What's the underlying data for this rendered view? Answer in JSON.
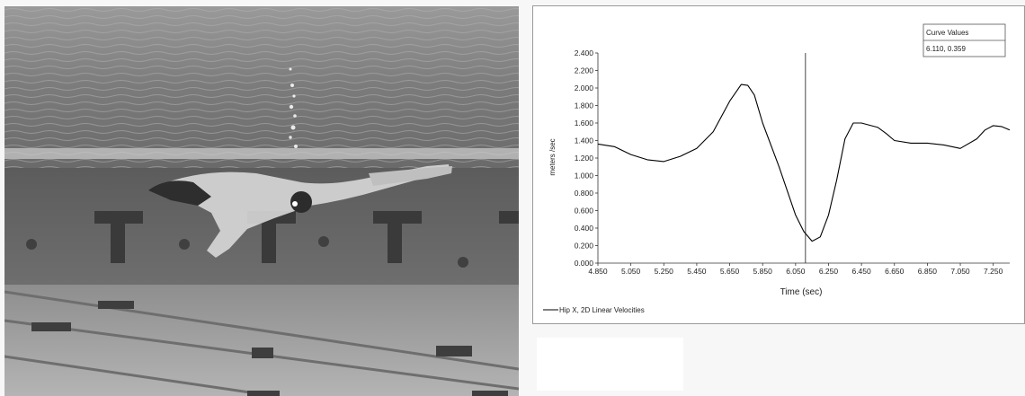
{
  "video_frame": {
    "description_icon": "swimmer-underwater-photo"
  },
  "chart_data": {
    "type": "line",
    "xlabel": "Time (sec)",
    "ylabel": "meters /sec",
    "xlim": [
      4.85,
      7.35
    ],
    "ylim": [
      0.0,
      2.4
    ],
    "x_ticks": [
      "4.850",
      "5.050",
      "5.250",
      "5.450",
      "5.650",
      "5.850",
      "6.050",
      "6.250",
      "6.450",
      "6.650",
      "6.850",
      "7.050",
      "7.250"
    ],
    "y_ticks": [
      "0.000",
      "0.200",
      "0.400",
      "0.600",
      "0.800",
      "1.000",
      "1.200",
      "1.400",
      "1.600",
      "1.800",
      "2.000",
      "2.200",
      "2.400"
    ],
    "cursor_x": 6.11,
    "legend": {
      "label": "Hip X, 2D Linear Velocities",
      "placement": "bottom-left"
    },
    "curve_values": {
      "title": "Curve Values",
      "value": "6.110,  0.359"
    },
    "series": [
      {
        "name": "Hip X, 2D Linear Velocities",
        "color": "#000000",
        "x": [
          4.85,
          4.95,
          5.05,
          5.15,
          5.25,
          5.35,
          5.45,
          5.55,
          5.65,
          5.72,
          5.76,
          5.8,
          5.85,
          5.95,
          6.05,
          6.1,
          6.15,
          6.2,
          6.25,
          6.3,
          6.35,
          6.4,
          6.45,
          6.55,
          6.6,
          6.65,
          6.75,
          6.85,
          6.95,
          7.05,
          7.15,
          7.2,
          7.25,
          7.3,
          7.35
        ],
        "y": [
          1.36,
          1.33,
          1.24,
          1.18,
          1.16,
          1.22,
          1.31,
          1.5,
          1.85,
          2.04,
          2.03,
          1.92,
          1.6,
          1.1,
          0.55,
          0.36,
          0.25,
          0.3,
          0.55,
          0.95,
          1.42,
          1.6,
          1.6,
          1.55,
          1.48,
          1.4,
          1.37,
          1.37,
          1.35,
          1.31,
          1.42,
          1.52,
          1.57,
          1.56,
          1.52
        ]
      }
    ]
  }
}
